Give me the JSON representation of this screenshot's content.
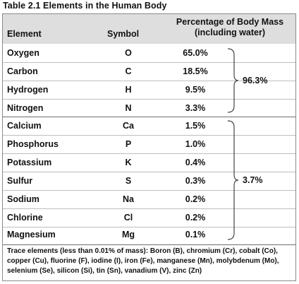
{
  "caption": "Table 2.1 Elements in the Human Body",
  "header": {
    "element": "Element",
    "symbol": "Symbol",
    "percent_line1": "Percentage of Body Mass",
    "percent_line2": "(including water)"
  },
  "rows": [
    {
      "element": "Oxygen",
      "symbol": "O",
      "percent": "65.0%"
    },
    {
      "element": "Carbon",
      "symbol": "C",
      "percent": "18.5%"
    },
    {
      "element": "Hydrogen",
      "symbol": "H",
      "percent": "9.5%"
    },
    {
      "element": "Nitrogen",
      "symbol": "N",
      "percent": "3.3%"
    },
    {
      "element": "Calcium",
      "symbol": "Ca",
      "percent": "1.5%"
    },
    {
      "element": "Phosphorus",
      "symbol": "P",
      "percent": "1.0%"
    },
    {
      "element": "Potassium",
      "symbol": "K",
      "percent": "0.4%"
    },
    {
      "element": "Sulfur",
      "symbol": "S",
      "percent": "0.3%"
    },
    {
      "element": "Sodium",
      "symbol": "Na",
      "percent": "0.2%"
    },
    {
      "element": "Chlorine",
      "symbol": "Cl",
      "percent": "0.2%"
    },
    {
      "element": "Magnesium",
      "symbol": "Mg",
      "percent": "0.1%"
    }
  ],
  "groups": [
    {
      "total": "96.3%"
    },
    {
      "total": "3.7%"
    }
  ],
  "trace_note": "Trace elements (less than 0.01% of mass): Boron (B), chromium (Cr), cobalt (Co), copper (Cu), fluorine (F), iodine (I), iron (Fe), manganese (Mn), molybdenum (Mo), selenium (Se), silicon (Si), tin (Sn), vanadium (V), zinc (Zn)"
}
